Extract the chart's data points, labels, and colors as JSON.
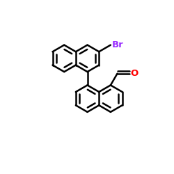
{
  "background_color": "#ffffff",
  "bond_color": "#000000",
  "br_color": "#9b30ff",
  "o_color": "#ff0000",
  "bond_width": 1.8,
  "figsize": [
    2.5,
    2.5
  ],
  "dpi": 100,
  "xlim": [
    0,
    10
  ],
  "ylim": [
    0,
    10
  ]
}
